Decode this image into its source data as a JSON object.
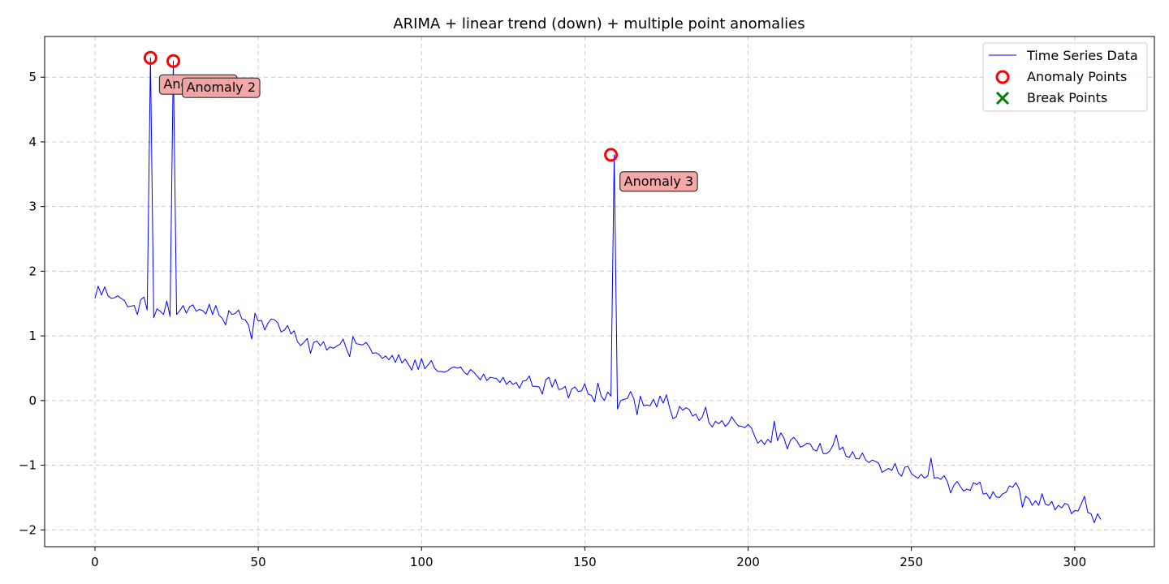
{
  "chart_data": {
    "type": "line",
    "title": "ARIMA + linear trend (down) + multiple point anomalies",
    "xlabel": "",
    "ylabel": "",
    "xlim": [
      -15.4,
      324.4
    ],
    "ylim": [
      -2.26,
      5.63
    ],
    "xticks": [
      0,
      50,
      100,
      150,
      200,
      250,
      300
    ],
    "yticks": [
      -2,
      -1,
      0,
      1,
      2,
      3,
      4,
      5
    ],
    "ytick_labels": [
      "−2",
      "−1",
      "0",
      "1",
      "2",
      "3",
      "4",
      "5"
    ],
    "grid": true,
    "legend_position": "top-right",
    "series": [
      {
        "name": "Time Series Data",
        "color": "#0000ff",
        "x_start": 0,
        "values": [
          1.58,
          1.77,
          1.63,
          1.76,
          1.62,
          1.58,
          1.59,
          1.62,
          1.58,
          1.55,
          1.45,
          1.46,
          1.47,
          1.33,
          1.56,
          1.6,
          1.4,
          5.3,
          1.28,
          1.42,
          1.38,
          1.33,
          1.54,
          1.3,
          5.25,
          1.33,
          1.39,
          1.47,
          1.35,
          1.45,
          1.48,
          1.38,
          1.41,
          1.39,
          1.34,
          1.49,
          1.33,
          1.47,
          1.32,
          1.27,
          1.17,
          1.39,
          1.33,
          1.35,
          1.4,
          1.26,
          1.25,
          1.17,
          0.95,
          1.35,
          1.23,
          1.24,
          1.09,
          1.2,
          1.26,
          1.25,
          1.2,
          1.06,
          1.09,
          1.16,
          1.03,
          1.08,
          0.91,
          0.85,
          0.9,
          0.96,
          0.73,
          0.9,
          0.92,
          0.85,
          0.91,
          0.78,
          0.83,
          0.81,
          0.84,
          0.87,
          0.95,
          0.8,
          0.68,
          0.99,
          0.88,
          0.87,
          0.86,
          0.9,
          0.83,
          0.73,
          0.74,
          0.71,
          0.65,
          0.69,
          0.63,
          0.7,
          0.59,
          0.71,
          0.58,
          0.64,
          0.56,
          0.47,
          0.63,
          0.48,
          0.65,
          0.49,
          0.55,
          0.62,
          0.5,
          0.45,
          0.45,
          0.44,
          0.46,
          0.5,
          0.52,
          0.5,
          0.52,
          0.44,
          0.4,
          0.48,
          0.44,
          0.38,
          0.32,
          0.41,
          0.31,
          0.36,
          0.35,
          0.34,
          0.28,
          0.36,
          0.25,
          0.3,
          0.25,
          0.28,
          0.19,
          0.3,
          0.31,
          0.38,
          0.22,
          0.22,
          0.21,
          0.1,
          0.32,
          0.36,
          0.21,
          0.33,
          0.17,
          0.18,
          0.22,
          0.04,
          0.18,
          0.21,
          0.14,
          0.15,
          0.26,
          0.1,
          0.08,
          -0.02,
          0.27,
          0.07,
          0.0,
          0.13,
          0.07,
          3.8,
          -0.13,
          0.0,
          0.02,
          0.03,
          0.14,
          0.03,
          -0.22,
          0.07,
          -0.08,
          -0.07,
          -0.08,
          0.02,
          -0.1,
          0.07,
          -0.04,
          0.09,
          -0.12,
          -0.28,
          -0.25,
          -0.09,
          -0.15,
          -0.11,
          -0.14,
          -0.24,
          -0.21,
          -0.31,
          -0.25,
          -0.1,
          -0.34,
          -0.41,
          -0.32,
          -0.36,
          -0.31,
          -0.4,
          -0.35,
          -0.25,
          -0.33,
          -0.39,
          -0.4,
          -0.42,
          -0.37,
          -0.42,
          -0.55,
          -0.66,
          -0.61,
          -0.68,
          -0.6,
          -0.65,
          -0.32,
          -0.62,
          -0.5,
          -0.58,
          -0.75,
          -0.61,
          -0.57,
          -0.63,
          -0.72,
          -0.7,
          -0.66,
          -0.67,
          -0.76,
          -0.78,
          -0.66,
          -0.82,
          -0.82,
          -0.78,
          -0.69,
          -0.53,
          -0.76,
          -0.72,
          -0.86,
          -0.88,
          -0.79,
          -0.9,
          -0.9,
          -0.81,
          -0.92,
          -0.96,
          -0.92,
          -0.94,
          -0.97,
          -1.11,
          -1.08,
          -1.05,
          -1.08,
          -0.97,
          -1.12,
          -1.17,
          -1.03,
          -1.02,
          -1.13,
          -1.17,
          -1.2,
          -1.14,
          -1.2,
          -1.17,
          -0.89,
          -1.2,
          -1.19,
          -1.22,
          -1.16,
          -1.25,
          -1.43,
          -1.31,
          -1.25,
          -1.33,
          -1.4,
          -1.37,
          -1.39,
          -1.27,
          -1.3,
          -1.26,
          -1.45,
          -1.43,
          -1.52,
          -1.41,
          -1.49,
          -1.5,
          -1.44,
          -1.42,
          -1.32,
          -1.34,
          -1.27,
          -1.37,
          -1.65,
          -1.48,
          -1.52,
          -1.62,
          -1.55,
          -1.62,
          -1.44,
          -1.6,
          -1.62,
          -1.56,
          -1.69,
          -1.62,
          -1.66,
          -1.59,
          -1.61,
          -1.75,
          -1.7,
          -1.71,
          -1.6,
          -1.48,
          -1.73,
          -1.75,
          -1.89,
          -1.75,
          -1.84
        ]
      }
    ],
    "anomaly_points": [
      {
        "x": 17,
        "y": 5.3,
        "label": "Anomaly 1"
      },
      {
        "x": 24,
        "y": 5.25,
        "label": "Anomaly 2"
      },
      {
        "x": 158,
        "y": 3.8,
        "label": "Anomaly 3"
      }
    ],
    "legend": [
      {
        "label": "Time Series Data",
        "marker": "line",
        "color": "#0000ff"
      },
      {
        "label": "Anomaly Points",
        "marker": "circle",
        "color": "#ff0000"
      },
      {
        "label": "Break Points",
        "marker": "x",
        "color": "#008000"
      }
    ],
    "colors": {
      "line": "#0000ff",
      "anomaly": "#ff0000",
      "break": "#008000",
      "annotation_fill": "#f4a3a3",
      "grid": "#cccccc"
    }
  }
}
